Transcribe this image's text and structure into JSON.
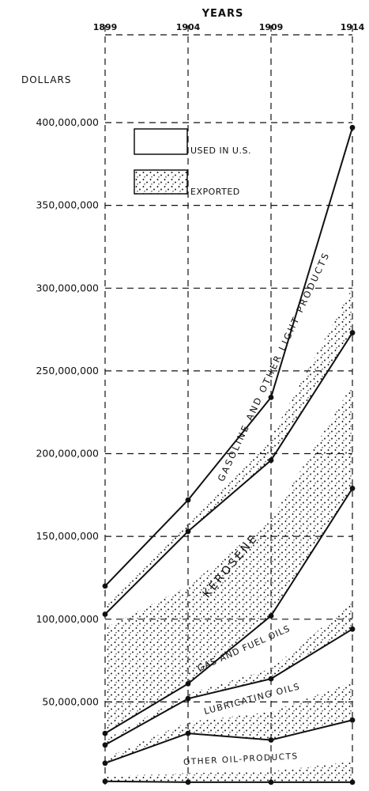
{
  "chart_data": {
    "type": "area",
    "title": "YEARS",
    "ylabel": "DOLLARS",
    "xlabel": "",
    "categories": [
      "1899",
      "1904",
      "1909",
      "1914"
    ],
    "ylim": [
      0,
      400000000
    ],
    "y_ticks": [
      "50,000,000",
      "100,000,000",
      "150,000,000",
      "200,000,000",
      "250,000,000",
      "300,000,000",
      "350,000,000",
      "400,000,000"
    ],
    "y_tick_values": [
      50000000,
      100000000,
      150000000,
      200000000,
      250000000,
      300000000,
      350000000,
      400000000
    ],
    "grid": "dashed",
    "legend": {
      "placement": "top-left",
      "items": [
        {
          "label": "USED IN U.S.",
          "style": "plain"
        },
        {
          "label": "EXPORTED",
          "style": "stippled"
        }
      ]
    },
    "boundaries": [
      {
        "values": [
          2000000,
          1500000,
          1500000,
          1500000
        ]
      },
      {
        "values": [
          13000000,
          31000000,
          27000000,
          39000000
        ]
      },
      {
        "values": [
          24000000,
          52000000,
          64000000,
          94000000
        ]
      },
      {
        "values": [
          31000000,
          61000000,
          102000000,
          179000000
        ]
      },
      {
        "values": [
          103000000,
          153000000,
          196000000,
          273000000
        ]
      },
      {
        "values": [
          120000000,
          172000000,
          234000000,
          397000000
        ]
      }
    ],
    "exported_tops": [
      {
        "values": [
          5000000,
          7000000,
          8000000,
          14000000
        ]
      },
      {
        "values": [
          16000000,
          38000000,
          44000000,
          62000000
        ]
      },
      {
        "values": [
          27000000,
          55000000,
          70000000,
          110000000
        ]
      },
      {
        "values": [
          95000000,
          120000000,
          160000000,
          242000000
        ]
      },
      {
        "values": [
          108000000,
          158000000,
          210000000,
          300000000
        ]
      }
    ],
    "series": [
      {
        "name": "OTHER OIL-PRODUCTS"
      },
      {
        "name": "LUBRICATING OILS"
      },
      {
        "name": "GAS AND FUEL OILS"
      },
      {
        "name": "KEROSENE"
      },
      {
        "name": "GASOLINE AND OTHER LIGHT PRODUCTS"
      }
    ]
  }
}
